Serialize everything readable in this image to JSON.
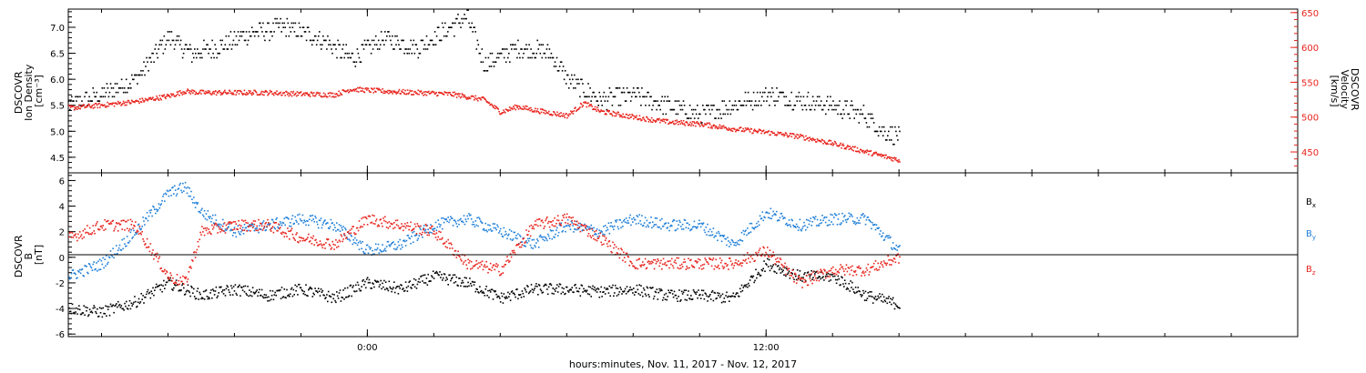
{
  "chart_data": [
    {
      "type": "scatter",
      "panel": "top",
      "ylabel_lines": [
        "DSCOVR",
        "Ion Density",
        "[cm⁻³]"
      ],
      "ylim": [
        4.2,
        7.35
      ],
      "yticks": [
        4.5,
        5.0,
        5.5,
        6.0,
        6.5,
        7.0
      ],
      "ytick_labels": [
        "4.5",
        "5.0",
        "5.5",
        "6.0",
        "6.5",
        "7.0"
      ],
      "y2label_lines": [
        "DSCOVR",
        "Velocity",
        "[km/s]"
      ],
      "y2lim": [
        420,
        655
      ],
      "y2ticks": [
        450,
        500,
        550,
        600,
        650
      ],
      "y2tick_labels": [
        "450",
        "500",
        "550",
        "600",
        "650"
      ],
      "series": [
        {
          "color": "#000000",
          "axis": "left",
          "x": [
            -9.0,
            -8.0,
            -7.0,
            -6.0,
            -5.3,
            -4.5,
            -3.5,
            -2.5,
            -1.5,
            -0.5,
            0.5,
            1.5,
            2.5,
            3.0,
            3.5,
            4.5,
            5.5,
            6.0,
            7.0,
            8.0,
            9.0,
            10.0,
            11.0,
            12.0,
            13.0,
            14.0,
            15.0,
            15.5,
            16.0
          ],
          "values": [
            5.5,
            5.7,
            6.0,
            6.8,
            6.5,
            6.6,
            6.9,
            7.0,
            6.8,
            6.4,
            6.8,
            6.6,
            7.0,
            7.2,
            6.3,
            6.6,
            6.5,
            6.0,
            5.6,
            5.7,
            5.5,
            5.3,
            5.5,
            5.7,
            5.6,
            5.5,
            5.3,
            5.0,
            4.9
          ]
        },
        {
          "color": "#e8231c",
          "axis": "right",
          "x": [
            -9.0,
            -8.0,
            -7.0,
            -6.0,
            -5.5,
            -5.0,
            -4.0,
            -3.0,
            -2.0,
            -1.0,
            -0.5,
            0.5,
            1.5,
            2.5,
            3.5,
            4.0,
            4.5,
            5.0,
            6.0,
            6.5,
            7.0,
            8.0,
            9.0,
            10.0,
            11.0,
            12.0,
            13.0,
            14.0,
            15.0,
            16.0
          ],
          "values": [
            513,
            517,
            522,
            530,
            537,
            535,
            535,
            535,
            533,
            532,
            540,
            537,
            535,
            533,
            525,
            507,
            515,
            510,
            502,
            520,
            508,
            500,
            493,
            490,
            483,
            478,
            472,
            462,
            450,
            438
          ]
        }
      ]
    },
    {
      "type": "scatter",
      "panel": "bottom",
      "ylabel_lines": [
        "DSCOVR",
        "B",
        "[nT]"
      ],
      "ylim": [
        -6.2,
        6.6
      ],
      "yticks": [
        -6,
        -4,
        -2,
        0,
        2,
        4,
        6
      ],
      "ytick_labels": [
        "-6",
        "-4",
        "-2",
        "0",
        "2",
        "4",
        "6"
      ],
      "series": [
        {
          "name": "Bx",
          "color": "#000000",
          "x": [
            -9.0,
            -8.0,
            -7.0,
            -6.0,
            -5.0,
            -4.0,
            -3.0,
            -2.0,
            -1.0,
            0.0,
            1.0,
            2.0,
            3.0,
            4.0,
            5.0,
            6.0,
            7.0,
            8.0,
            9.0,
            10.0,
            11.0,
            12.0,
            13.0,
            14.0,
            15.0,
            16.0
          ],
          "values": [
            -4.0,
            -4.3,
            -3.5,
            -2.0,
            -3.0,
            -2.5,
            -3.0,
            -2.5,
            -3.2,
            -2.0,
            -2.5,
            -1.5,
            -2.0,
            -3.2,
            -2.5,
            -2.5,
            -2.7,
            -2.5,
            -3.0,
            -3.0,
            -3.2,
            -0.5,
            -1.5,
            -1.5,
            -3.0,
            -3.7
          ]
        },
        {
          "name": "By",
          "color": "#1f7fd8",
          "x": [
            -9.0,
            -8.0,
            -7.0,
            -6.0,
            -5.5,
            -5.0,
            -4.0,
            -3.0,
            -2.0,
            -1.0,
            0.0,
            1.0,
            2.0,
            3.0,
            4.0,
            5.0,
            6.0,
            7.0,
            8.0,
            9.0,
            10.0,
            11.0,
            12.0,
            13.0,
            14.0,
            15.0,
            16.0
          ],
          "values": [
            -1.5,
            -0.5,
            2.0,
            5.0,
            5.5,
            3.5,
            2.0,
            2.5,
            3.0,
            2.5,
            0.5,
            1.0,
            2.5,
            3.0,
            2.0,
            1.0,
            2.5,
            2.0,
            3.0,
            2.5,
            2.5,
            1.0,
            3.5,
            2.5,
            3.0,
            3.0,
            0.5
          ]
        },
        {
          "name": "Bz",
          "color": "#e8231c",
          "x": [
            -9.0,
            -8.0,
            -7.0,
            -6.0,
            -5.5,
            -5.0,
            -4.0,
            -3.0,
            -2.0,
            -1.0,
            0.0,
            1.0,
            2.0,
            3.0,
            4.0,
            5.0,
            6.0,
            7.0,
            8.0,
            9.0,
            10.0,
            11.0,
            12.0,
            13.0,
            14.0,
            15.0,
            16.0
          ],
          "values": [
            1.5,
            2.5,
            2.5,
            -1.5,
            -2.0,
            2.0,
            2.5,
            2.5,
            1.5,
            1.0,
            3.0,
            2.5,
            2.0,
            -0.5,
            -1.0,
            2.5,
            3.0,
            1.5,
            -0.5,
            -0.5,
            -0.5,
            -0.5,
            0.5,
            -2.0,
            -1.0,
            -1.0,
            0.0
          ]
        }
      ],
      "legend": [
        "Bx",
        "By",
        "Bz"
      ],
      "legend_placement": "right"
    }
  ],
  "xaxis": {
    "range_hours": [
      -9.0,
      28.0
    ],
    "major_ticks": [
      0,
      12
    ],
    "major_tick_labels": [
      "0:00",
      "12:00"
    ],
    "minor_tick_step_hours": 2,
    "title": "hours:minutes, Nov. 11, 2017 - Nov. 12, 2017"
  },
  "legend_labels": {
    "bx_main": "B",
    "bx_sub": "x",
    "by_main": "B",
    "by_sub": "y",
    "bz_main": "B",
    "bz_sub": "z"
  },
  "colors": {
    "black": "#000000",
    "red": "#e8231c",
    "blue": "#1f7fd8"
  }
}
